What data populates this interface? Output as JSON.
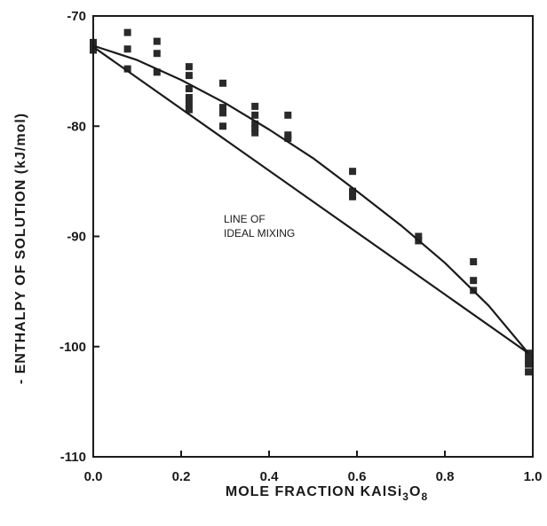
{
  "chart_data": {
    "type": "scatter",
    "title": "",
    "xlabel_parts": [
      "MOLE  FRACTION  KAlSi",
      "3",
      "O",
      "8"
    ],
    "ylabel": "- ENTHALPY OF SOLUTION  (kJ/mol)",
    "xlim": [
      0.0,
      1.0
    ],
    "ylim": [
      -110,
      -70
    ],
    "x_ticks": [
      0.0,
      0.2,
      0.4,
      0.6,
      0.8,
      1.0
    ],
    "x_tick_labels": [
      "0.0",
      "0.2",
      "0.4",
      "0.6",
      "0.8",
      "1.0"
    ],
    "y_ticks": [
      -110,
      -100,
      -90,
      -80,
      -70
    ],
    "y_tick_labels": [
      "-110",
      "-100",
      "-90",
      "-80",
      "-70"
    ],
    "grid": false,
    "annotation": [
      "LINE OF",
      "IDEAL MIXING"
    ],
    "series": [
      {
        "kind": "points",
        "marker": "square",
        "x": [
          0.0,
          0.0,
          0.0,
          0.078,
          0.078,
          0.078,
          0.145,
          0.145,
          0.145,
          0.218,
          0.218,
          0.218,
          0.218,
          0.218,
          0.218,
          0.295,
          0.295,
          0.295,
          0.295,
          0.368,
          0.368,
          0.368,
          0.368,
          0.368,
          0.443,
          0.443,
          0.443,
          0.59,
          0.59,
          0.59,
          0.74,
          0.74,
          0.865,
          0.865,
          0.865,
          0.99,
          0.99,
          0.99,
          0.99
        ],
        "y": [
          -72.4,
          -72.8,
          -73.1,
          -71.5,
          -73.0,
          -74.8,
          -72.3,
          -73.4,
          -75.1,
          -74.6,
          -75.4,
          -76.6,
          -77.4,
          -78.0,
          -78.5,
          -76.1,
          -78.3,
          -78.8,
          -80.0,
          -78.2,
          -79.0,
          -79.8,
          -80.2,
          -80.6,
          -79.0,
          -80.8,
          -81.1,
          -84.1,
          -85.9,
          -86.4,
          -90.0,
          -90.4,
          -92.3,
          -94.0,
          -94.9,
          -100.6,
          -101.2,
          -101.6,
          -102.3
        ]
      },
      {
        "kind": "curve",
        "x": [
          0.0,
          0.1,
          0.2,
          0.3,
          0.4,
          0.5,
          0.6,
          0.7,
          0.8,
          0.9,
          0.99
        ],
        "y": [
          -72.7,
          -74.0,
          -75.8,
          -77.9,
          -80.3,
          -82.9,
          -85.9,
          -89.0,
          -92.4,
          -96.3,
          -100.6
        ]
      },
      {
        "kind": "line",
        "x": [
          0.0,
          0.99
        ],
        "y": [
          -72.8,
          -100.6
        ]
      }
    ]
  }
}
